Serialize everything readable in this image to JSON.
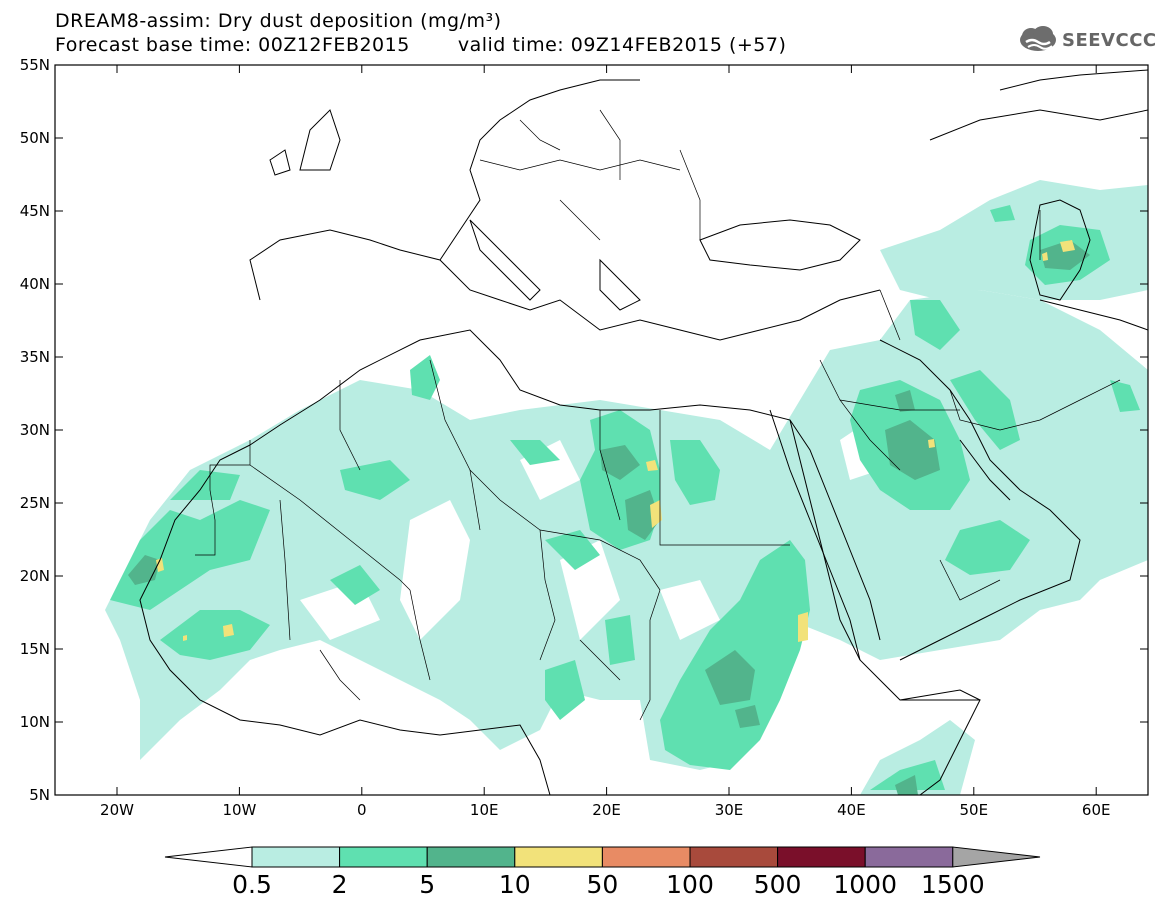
{
  "header": {
    "title_line1": "DREAM8-assim: Dry dust deposition (mg/m³)",
    "base_time": "Forecast base time: 00Z12FEB2015",
    "valid_time": "valid time: 09Z14FEB2015 (+57)"
  },
  "logo": {
    "text": "SEEVCCC",
    "icon": "cloud-icon"
  },
  "map": {
    "lat_ticks": [
      "55N",
      "50N",
      "45N",
      "40N",
      "35N",
      "30N",
      "25N",
      "20N",
      "15N",
      "10N",
      "5N"
    ],
    "lon_ticks": [
      "20W",
      "10W",
      "0",
      "10E",
      "20E",
      "30E",
      "40E",
      "50E",
      "60E"
    ]
  },
  "colorbar": {
    "labels": [
      "0.5",
      "2",
      "5",
      "10",
      "50",
      "100",
      "500",
      "1000",
      "1500"
    ],
    "colors": [
      "#b9ede2",
      "#5fe0b0",
      "#52b48c",
      "#f2e27a",
      "#e88b64",
      "#a84a3c",
      "#7a0f2a",
      "#8a6a9b",
      "#a5a5a5"
    ],
    "min_arrow_color": "#ffffff",
    "max_arrow_color": "#a5a5a5"
  }
}
